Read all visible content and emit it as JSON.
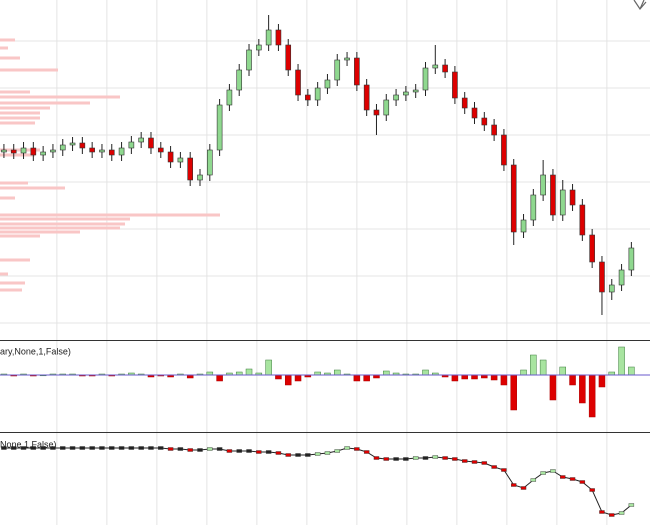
{
  "chart_data": [
    {
      "type": "candlestick",
      "xlim": [
        -0.4,
        65.9
      ],
      "ylim": [
        0,
        340
      ],
      "xticks": [
        5.4,
        10.5,
        15.6,
        20.7,
        25.8,
        30.9,
        36,
        41.1,
        46.2,
        51.3,
        56.4,
        61.5
      ],
      "yticks": [
        17,
        64,
        111,
        158,
        205,
        252,
        299
      ],
      "grid": true,
      "up_color": "#8fd88f",
      "down_color": "#dd0000",
      "open": [
        188,
        190,
        187,
        192,
        185,
        188,
        190,
        195,
        197,
        192,
        188,
        190,
        185,
        192,
        198,
        202,
        192,
        188,
        178,
        182,
        160,
        165,
        190,
        235,
        250,
        270,
        290,
        295,
        310,
        295,
        270,
        245,
        240,
        252,
        260,
        280,
        282,
        255,
        230,
        225,
        240,
        245,
        248,
        250,
        272,
        275,
        268,
        242,
        232,
        222,
        215,
        205,
        175,
        108,
        120,
        145,
        165,
        125,
        150,
        135,
        105,
        78,
        48,
        55,
        70
      ],
      "high": [
        196,
        196,
        198,
        198,
        194,
        196,
        201,
        203,
        203,
        198,
        196,
        196,
        198,
        204,
        208,
        208,
        198,
        194,
        188,
        188,
        171,
        196,
        241,
        256,
        276,
        296,
        301,
        325,
        316,
        301,
        276,
        251,
        258,
        266,
        286,
        288,
        288,
        261,
        236,
        246,
        251,
        254,
        256,
        278,
        295,
        281,
        274,
        248,
        238,
        228,
        221,
        211,
        181,
        126,
        151,
        180,
        171,
        160,
        156,
        141,
        111,
        84,
        61,
        76,
        98
      ],
      "low": [
        182,
        181,
        181,
        179,
        179,
        182,
        184,
        189,
        186,
        182,
        182,
        179,
        179,
        186,
        192,
        186,
        182,
        172,
        172,
        154,
        154,
        159,
        184,
        229,
        244,
        264,
        284,
        289,
        289,
        264,
        239,
        234,
        234,
        246,
        254,
        274,
        249,
        224,
        205,
        219,
        234,
        239,
        242,
        244,
        266,
        262,
        236,
        226,
        216,
        209,
        199,
        169,
        95,
        102,
        114,
        139,
        119,
        119,
        129,
        99,
        72,
        25,
        40,
        49,
        64
      ],
      "close": [
        190,
        187,
        192,
        185,
        188,
        190,
        195,
        197,
        192,
        188,
        190,
        185,
        192,
        198,
        202,
        192,
        188,
        178,
        182,
        160,
        165,
        190,
        235,
        250,
        270,
        290,
        295,
        310,
        295,
        270,
        245,
        240,
        252,
        260,
        280,
        282,
        255,
        230,
        225,
        240,
        245,
        248,
        250,
        272,
        275,
        268,
        242,
        232,
        222,
        215,
        205,
        175,
        108,
        120,
        145,
        165,
        125,
        150,
        135,
        105,
        78,
        48,
        55,
        70,
        92
      ],
      "profile": {
        "color": "#f9c6c6",
        "xlim": [
          0,
          650
        ],
        "levels": [
          300,
          292,
          282,
          270,
          248,
          243,
          237,
          232,
          227,
          222,
          217,
          190,
          185,
          157,
          152,
          142,
          125,
          121,
          116,
          112,
          108,
          104,
          80,
          66,
          57,
          50
        ],
        "values": [
          15,
          8,
          20,
          58,
          30,
          120,
          90,
          50,
          40,
          40,
          35,
          40,
          35,
          28,
          65,
          15,
          220,
          130,
          125,
          120,
          80,
          40,
          30,
          8,
          25,
          22
        ]
      }
    },
    {
      "type": "histogram-indicator",
      "label": "ary,None,1,False)",
      "xlim": [
        -0.4,
        65.9
      ],
      "ylim": [
        -57,
        34
      ],
      "pos_color": "#a8e4a0",
      "neg_color": "#dd0000",
      "zero_color": "#6a5acd",
      "values": [
        1,
        -1,
        1,
        -1,
        0,
        1,
        1,
        1,
        -1,
        -1,
        1,
        -1,
        1,
        2,
        1,
        -2,
        -1,
        -2,
        1,
        -3,
        1,
        3,
        -6,
        2,
        3,
        6,
        2,
        15,
        -4,
        -10,
        -6,
        -2,
        3,
        2,
        5,
        1,
        -6,
        -6,
        -3,
        4,
        2,
        1,
        1,
        5,
        2,
        -2,
        -6,
        -4,
        -4,
        -3,
        -5,
        -10,
        -35,
        5,
        20,
        15,
        -25,
        8,
        -10,
        -28,
        -42,
        -12,
        3,
        28,
        8
      ]
    },
    {
      "type": "line-indicator",
      "label": "None,1,False)",
      "xlim": [
        -0.4,
        65.9
      ],
      "ylim": [
        0,
        92
      ],
      "pos_color": "#a8e4a0",
      "neg_color": "#dd0000",
      "values": [
        77,
        77,
        77,
        77,
        77,
        77,
        77,
        77,
        77,
        77,
        77,
        77,
        77,
        77,
        77,
        77,
        77,
        76,
        76,
        75,
        75,
        76,
        76,
        74,
        74,
        74,
        73,
        73,
        72,
        70,
        70,
        70,
        71,
        72,
        74,
        77,
        76,
        73,
        67,
        66,
        66,
        66,
        67,
        67,
        68,
        67,
        66,
        64,
        63,
        62,
        58,
        55,
        40,
        37,
        45,
        52,
        54,
        48,
        46,
        43,
        35,
        13,
        10,
        12,
        20
      ]
    }
  ]
}
